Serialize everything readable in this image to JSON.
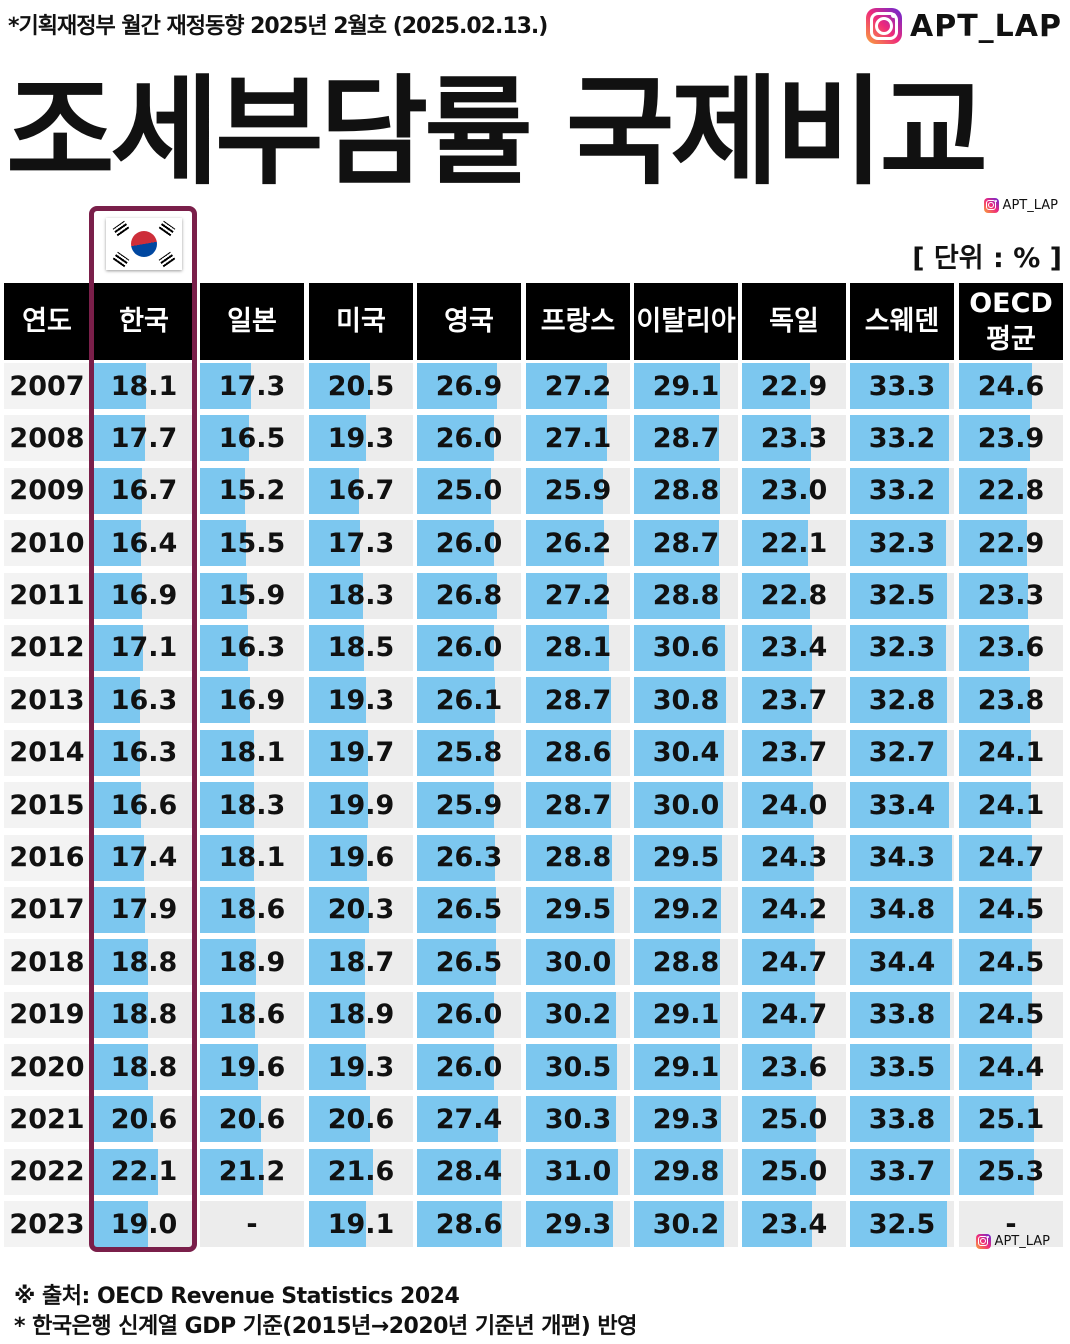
{
  "header": {
    "source_line": "*기획재정부 월간 재정동향 2025년 2월호 (2025.02.13.)",
    "brand": "APT_LAP",
    "title": "조세부담률 국제비교",
    "unit": "[ 단위 : % ]"
  },
  "icons": {
    "brand_icon": "instagram-icon",
    "flag": "south-korea-flag-icon"
  },
  "colors": {
    "bar": "#7cc7ef",
    "cell_bg": "#ececec",
    "header_bg": "#000000",
    "highlight_border": "#7a1f4a"
  },
  "chart_data": {
    "type": "table",
    "title": "조세부담률 국제비교",
    "unit": "%",
    "columns": [
      "연도",
      "한국",
      "일본",
      "미국",
      "영국",
      "프랑스",
      "이탈리아",
      "독일",
      "스웨덴",
      "OECD 평균"
    ],
    "highlighted_column": "한국",
    "bar_scale_max": 35,
    "rows": [
      {
        "year": "2007",
        "values": [
          "18.1",
          "17.3",
          "20.5",
          "26.9",
          "27.2",
          "29.1",
          "22.9",
          "33.3",
          "24.6"
        ]
      },
      {
        "year": "2008",
        "values": [
          "17.7",
          "16.5",
          "19.3",
          "26.0",
          "27.1",
          "28.7",
          "23.3",
          "33.2",
          "23.9"
        ]
      },
      {
        "year": "2009",
        "values": [
          "16.7",
          "15.2",
          "16.7",
          "25.0",
          "25.9",
          "28.8",
          "23.0",
          "33.2",
          "22.8"
        ]
      },
      {
        "year": "2010",
        "values": [
          "16.4",
          "15.5",
          "17.3",
          "26.0",
          "26.2",
          "28.7",
          "22.1",
          "32.3",
          "22.9"
        ]
      },
      {
        "year": "2011",
        "values": [
          "16.9",
          "15.9",
          "18.3",
          "26.8",
          "27.2",
          "28.8",
          "22.8",
          "32.5",
          "23.3"
        ]
      },
      {
        "year": "2012",
        "values": [
          "17.1",
          "16.3",
          "18.5",
          "26.0",
          "28.1",
          "30.6",
          "23.4",
          "32.3",
          "23.6"
        ]
      },
      {
        "year": "2013",
        "values": [
          "16.3",
          "16.9",
          "19.3",
          "26.1",
          "28.7",
          "30.8",
          "23.7",
          "32.8",
          "23.8"
        ]
      },
      {
        "year": "2014",
        "values": [
          "16.3",
          "18.1",
          "19.7",
          "25.8",
          "28.6",
          "30.4",
          "23.7",
          "32.7",
          "24.1"
        ]
      },
      {
        "year": "2015",
        "values": [
          "16.6",
          "18.3",
          "19.9",
          "25.9",
          "28.7",
          "30.0",
          "24.0",
          "33.4",
          "24.1"
        ]
      },
      {
        "year": "2016",
        "values": [
          "17.4",
          "18.1",
          "19.6",
          "26.3",
          "28.8",
          "29.5",
          "24.3",
          "34.3",
          "24.7"
        ]
      },
      {
        "year": "2017",
        "values": [
          "17.9",
          "18.6",
          "20.3",
          "26.5",
          "29.5",
          "29.2",
          "24.2",
          "34.8",
          "24.5"
        ]
      },
      {
        "year": "2018",
        "values": [
          "18.8",
          "18.9",
          "18.7",
          "26.5",
          "30.0",
          "28.8",
          "24.7",
          "34.4",
          "24.5"
        ]
      },
      {
        "year": "2019",
        "values": [
          "18.8",
          "18.6",
          "18.9",
          "26.0",
          "30.2",
          "29.1",
          "24.7",
          "33.8",
          "24.5"
        ]
      },
      {
        "year": "2020",
        "values": [
          "18.8",
          "19.6",
          "19.3",
          "26.0",
          "30.5",
          "29.1",
          "23.6",
          "33.5",
          "24.4"
        ]
      },
      {
        "year": "2021",
        "values": [
          "20.6",
          "20.6",
          "20.6",
          "27.4",
          "30.3",
          "29.3",
          "25.0",
          "33.8",
          "25.1"
        ]
      },
      {
        "year": "2022",
        "values": [
          "22.1",
          "21.2",
          "21.6",
          "28.4",
          "31.0",
          "29.8",
          "25.0",
          "33.7",
          "25.3"
        ]
      },
      {
        "year": "2023",
        "values": [
          "19.0",
          "-",
          "19.1",
          "28.6",
          "29.3",
          "30.2",
          "23.4",
          "32.5",
          "-"
        ]
      }
    ]
  },
  "footer": {
    "source": "※ 출처: OECD Revenue Statistics 2024",
    "note": "* 한국은행 신계열 GDP 기준(2015년→2020년 기준년 개편) 반영"
  }
}
